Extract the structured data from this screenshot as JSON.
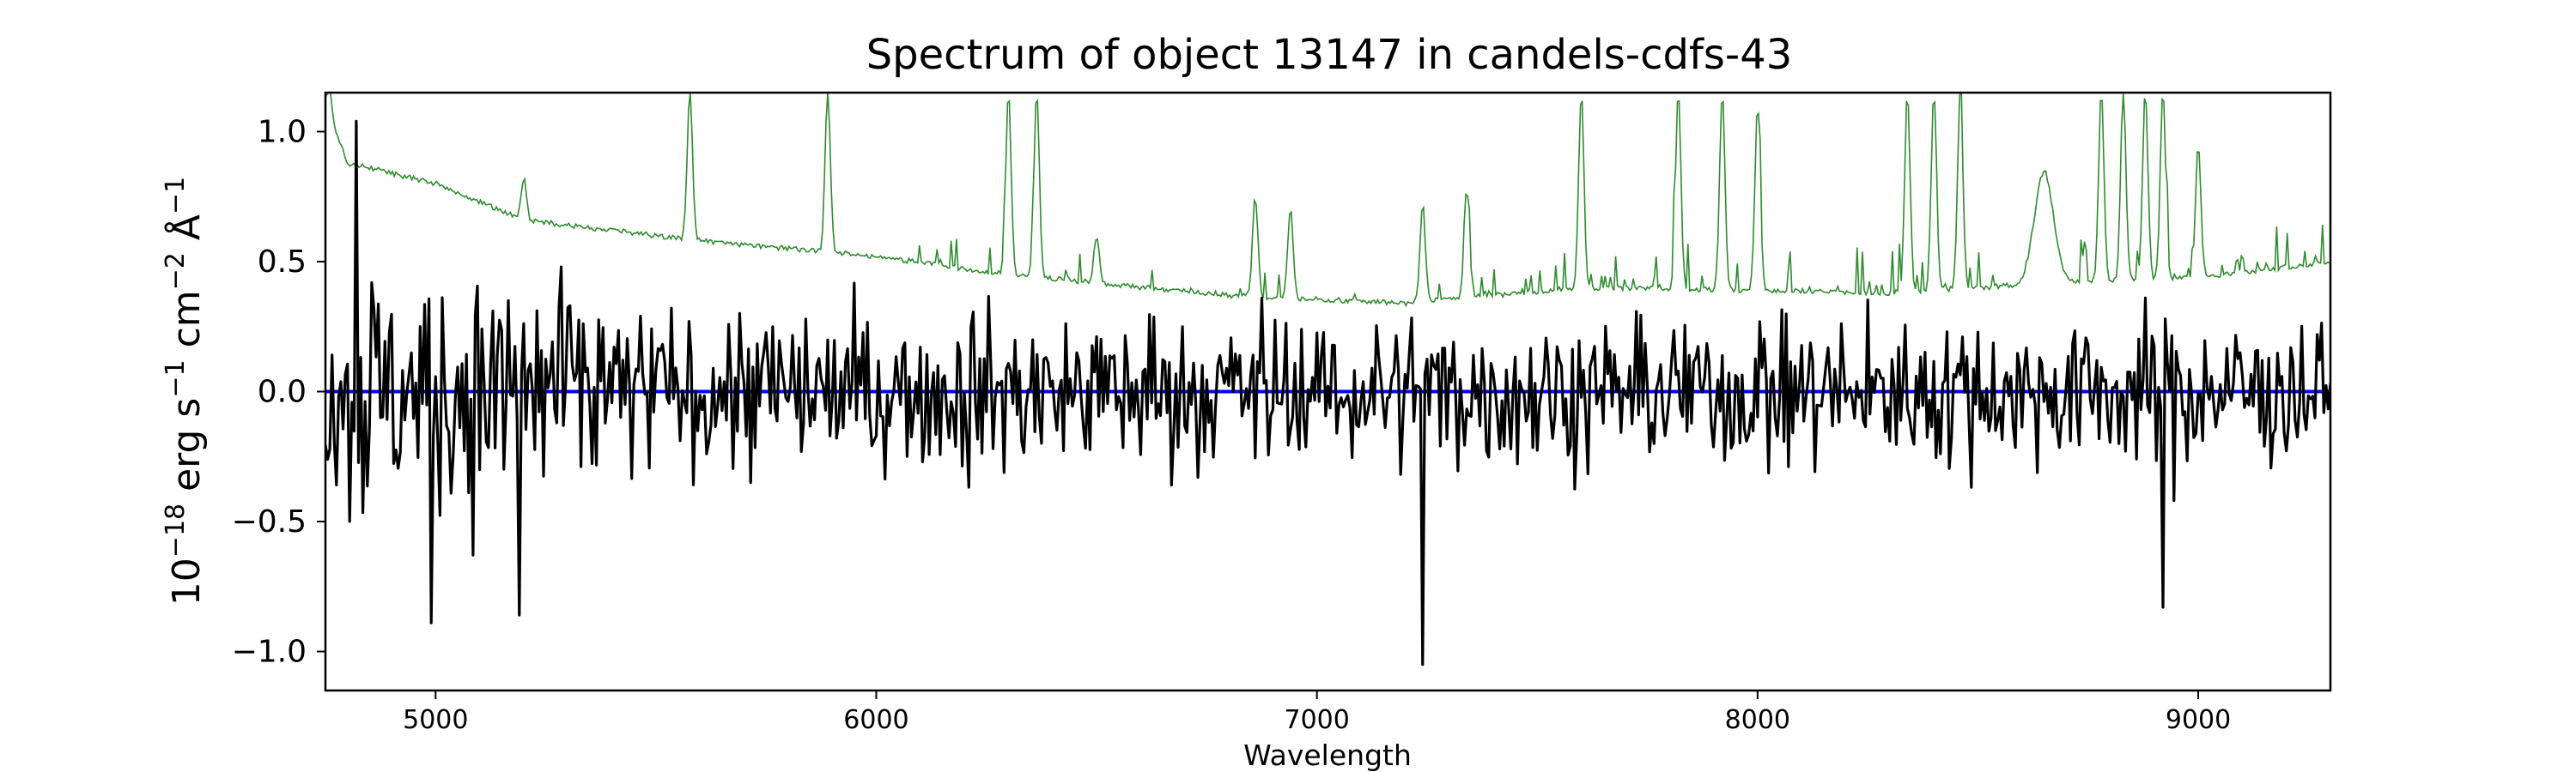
{
  "chart_data": {
    "type": "line",
    "title": "Spectrum of object 13147 in candels-cdfs-43",
    "xlabel": "Wavelength",
    "ylabel_parts": {
      "base": "10",
      "exp1": "−18",
      "unit1": " erg s",
      "exp2": "−1",
      "unit2": " cm",
      "exp3": "−2",
      "unit3": " Å",
      "exp4": "−1"
    },
    "xlim": [
      4750,
      9300
    ],
    "ylim": [
      -1.15,
      1.15
    ],
    "xticks": [
      5000,
      6000,
      7000,
      8000,
      9000
    ],
    "xtick_labels": [
      "5000",
      "6000",
      "7000",
      "8000",
      "9000"
    ],
    "yticks": [
      1.0,
      0.5,
      0.0,
      -0.5,
      -1.0
    ],
    "ytick_labels": [
      "1.0",
      "0.5",
      "0.0",
      "−0.5",
      "−1.0"
    ],
    "grid": false,
    "series": [
      {
        "id": "flux",
        "color": "#000000",
        "x_range": [
          4750,
          9300
        ],
        "notable_points": [
          {
            "x": 4820,
            "y": 1.04
          },
          {
            "x": 4990,
            "y": -0.89
          },
          {
            "x": 5190,
            "y": -0.86
          },
          {
            "x": 7240,
            "y": -1.05
          },
          {
            "x": 8920,
            "y": -0.83
          }
        ]
      },
      {
        "id": "zero-line",
        "color": "#0000ff",
        "x": [
          4750,
          9300
        ],
        "y": [
          0.0,
          0.0
        ]
      },
      {
        "id": "error-spectrum",
        "color": "#2e8b2e",
        "continuum_x": [
          4750,
          4800,
          5000,
          5200,
          5600,
          6000,
          6300,
          6800,
          7200,
          7600,
          8000,
          8300,
          8600,
          9000,
          9300
        ],
        "continuum_y": [
          1.1,
          0.88,
          0.8,
          0.66,
          0.58,
          0.52,
          0.45,
          0.37,
          0.34,
          0.4,
          0.39,
          0.38,
          0.41,
          0.44,
          0.5
        ],
        "peaks": [
          {
            "x": 4760,
            "y": 1.15
          },
          {
            "x": 5200,
            "y": 0.82
          },
          {
            "x": 5577,
            "y": 1.15
          },
          {
            "x": 5890,
            "y": 1.15
          },
          {
            "x": 6300,
            "y": 1.15
          },
          {
            "x": 6364,
            "y": 1.15
          },
          {
            "x": 6500,
            "y": 0.6
          },
          {
            "x": 6860,
            "y": 0.75
          },
          {
            "x": 6940,
            "y": 0.7
          },
          {
            "x": 7240,
            "y": 0.72
          },
          {
            "x": 7340,
            "y": 0.78
          },
          {
            "x": 7600,
            "y": 1.15
          },
          {
            "x": 7820,
            "y": 1.15
          },
          {
            "x": 7920,
            "y": 1.15
          },
          {
            "x": 8000,
            "y": 1.1
          },
          {
            "x": 8340,
            "y": 1.15
          },
          {
            "x": 8400,
            "y": 1.15
          },
          {
            "x": 8460,
            "y": 1.15
          },
          {
            "x": 8650,
            "y": 0.84
          },
          {
            "x": 8780,
            "y": 1.15
          },
          {
            "x": 8830,
            "y": 1.15
          },
          {
            "x": 8880,
            "y": 1.15
          },
          {
            "x": 8920,
            "y": 1.15
          },
          {
            "x": 9000,
            "y": 0.95
          }
        ]
      }
    ]
  }
}
